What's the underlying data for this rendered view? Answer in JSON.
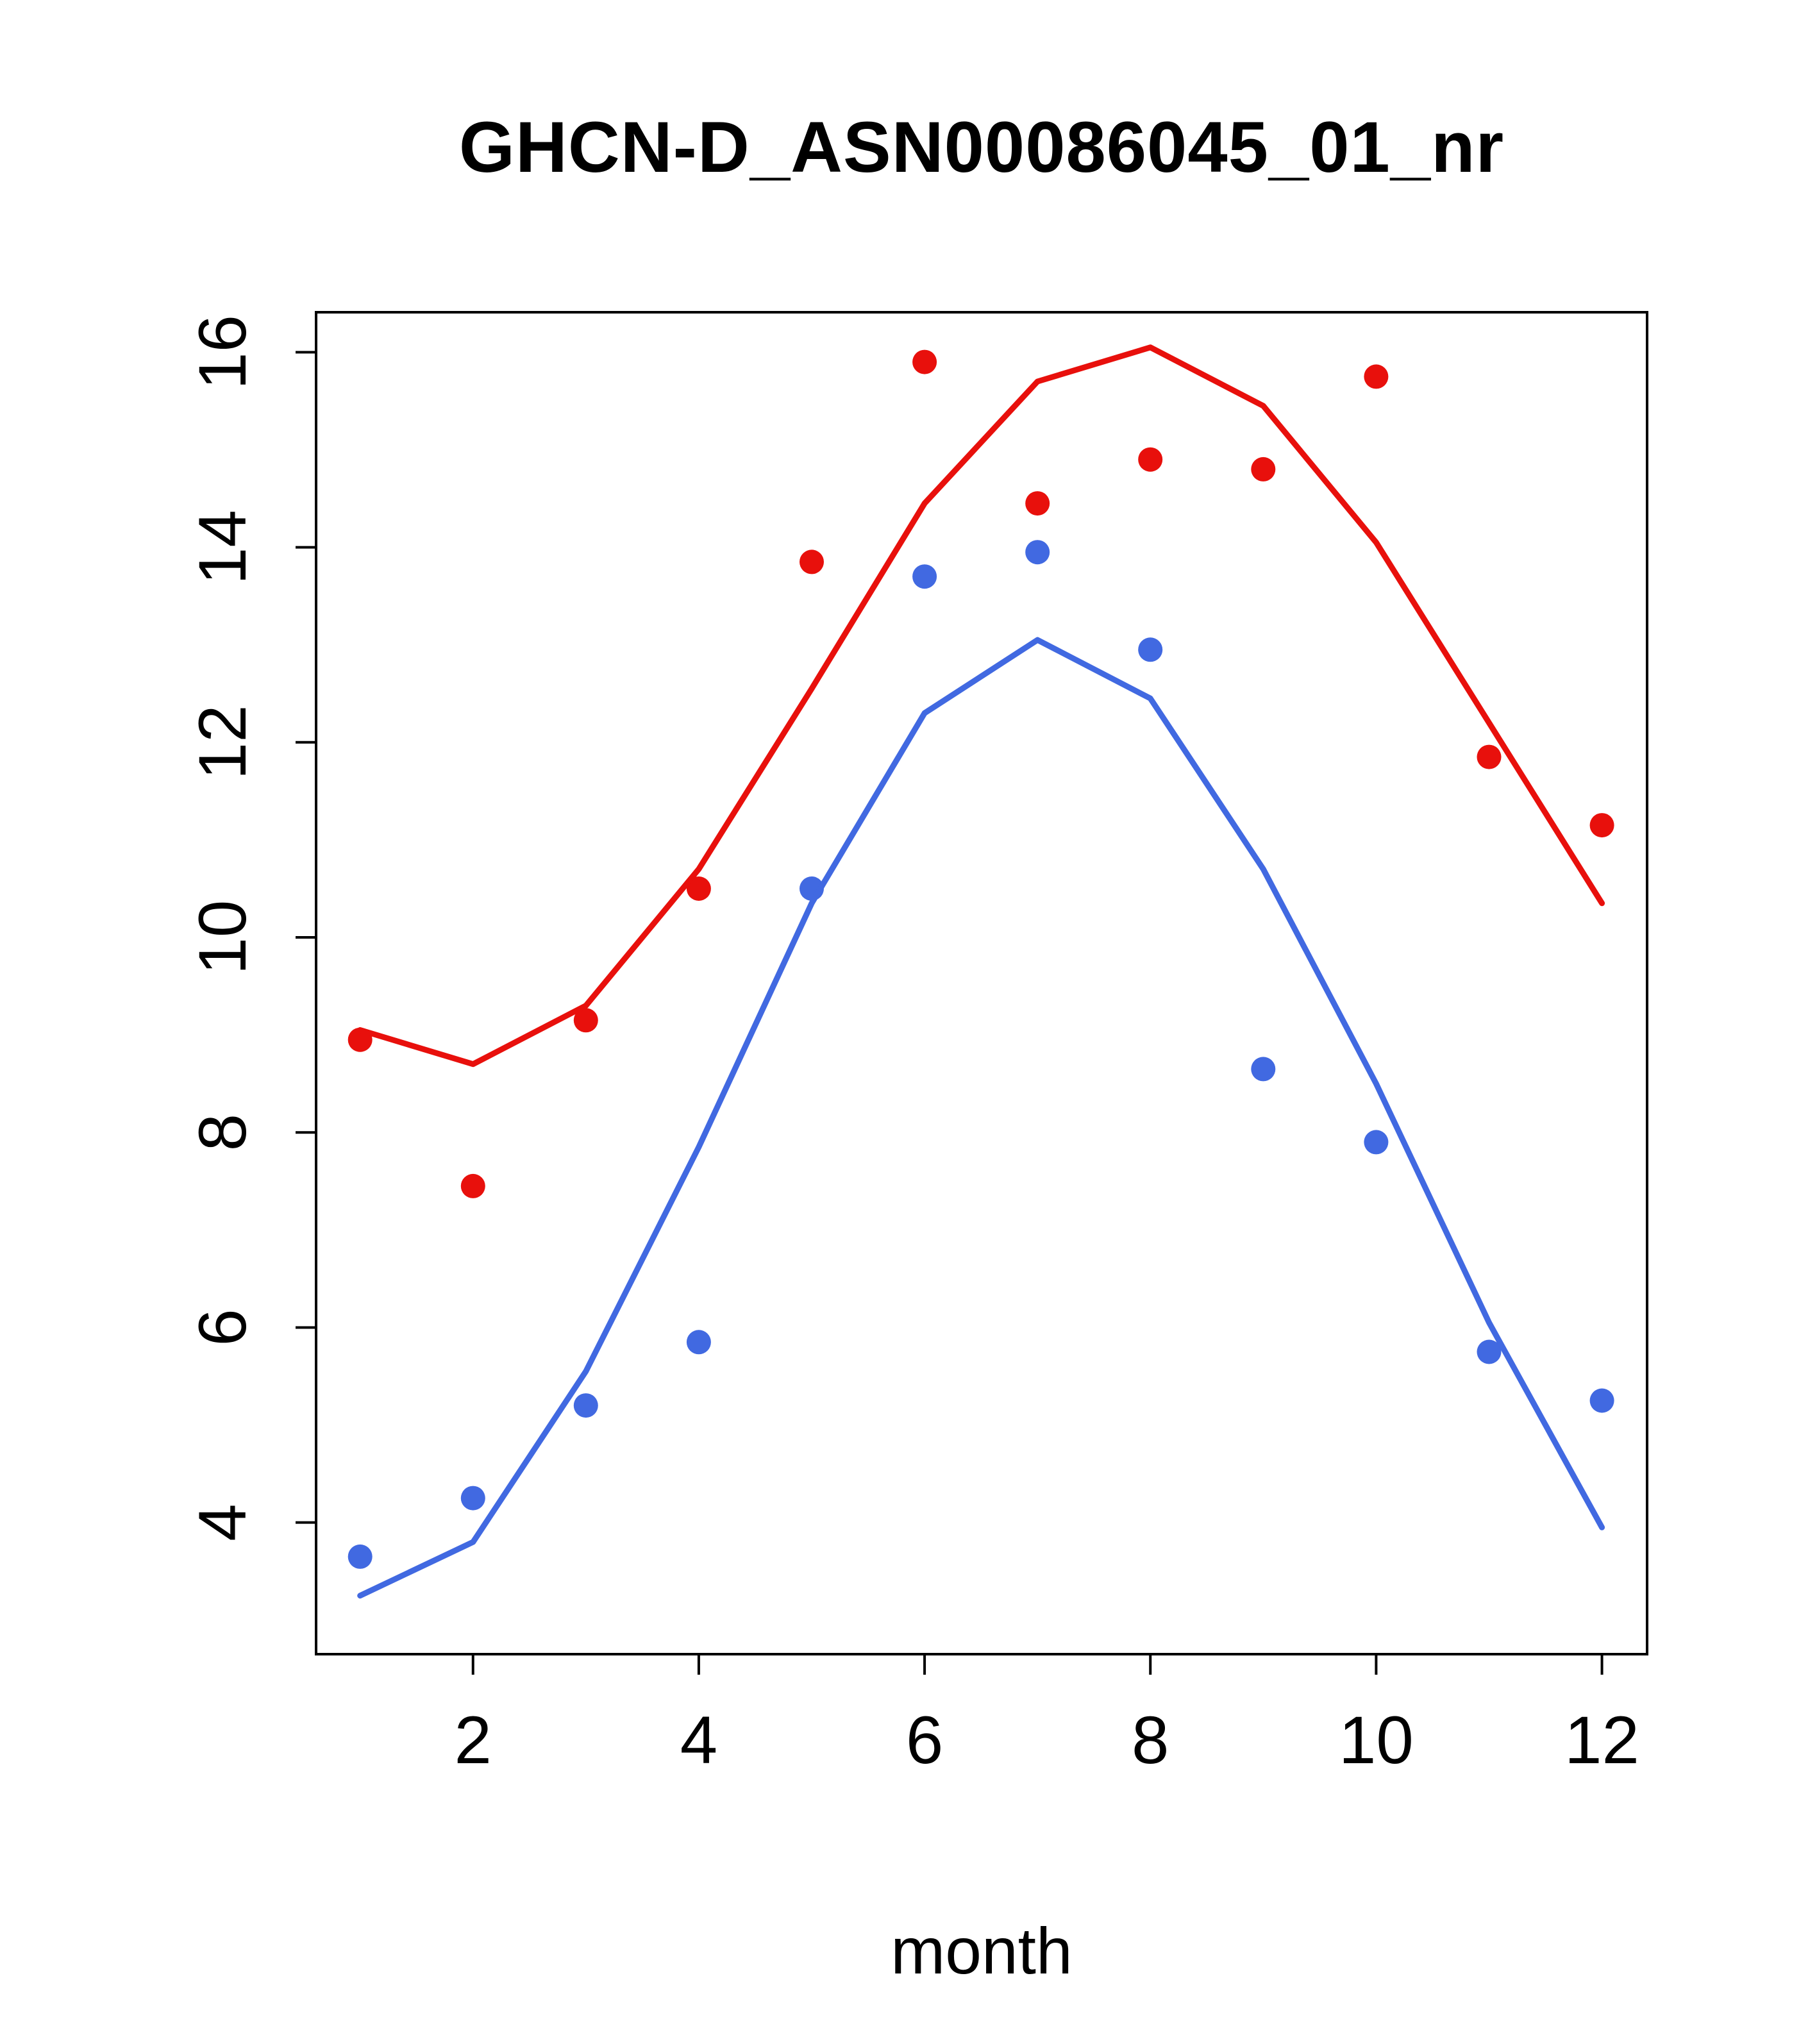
{
  "figure": {
    "title": "GHCN-D_ASN00086045_01_nr",
    "xlabel": "month"
  },
  "chart_data": {
    "type": "line",
    "title": "GHCN-D_ASN00086045_01_nr",
    "xlabel": "month",
    "ylabel": "",
    "grid": false,
    "legend": null,
    "x": [
      1,
      2,
      3,
      4,
      5,
      6,
      7,
      8,
      9,
      10,
      11,
      12
    ],
    "xticks": [
      2,
      4,
      6,
      8,
      10,
      12
    ],
    "yticks": [
      4,
      6,
      8,
      10,
      12,
      14,
      16
    ],
    "xlim": [
      0.61,
      12.4
    ],
    "ylim": [
      2.65,
      16.41
    ],
    "colors": {
      "red_series": "#e8100c",
      "blue_series": "#4169e1"
    },
    "series": [
      {
        "name": "red-points",
        "type": "scatter",
        "color": "#e8100c",
        "values": [
          8.95,
          7.45,
          9.15,
          10.5,
          13.85,
          15.9,
          14.45,
          14.9,
          14.8,
          15.75,
          11.85,
          11.15
        ]
      },
      {
        "name": "red-line",
        "type": "line",
        "color": "#e8100c",
        "values": [
          9.05,
          8.7,
          9.3,
          10.7,
          12.55,
          14.45,
          15.7,
          16.05,
          15.45,
          14.05,
          12.2,
          10.35
        ]
      },
      {
        "name": "blue-points",
        "type": "scatter",
        "color": "#4169e1",
        "values": [
          3.65,
          4.25,
          5.2,
          5.85,
          10.5,
          13.7,
          13.95,
          12.95,
          8.65,
          7.9,
          5.75,
          5.25
        ]
      },
      {
        "name": "blue-line",
        "type": "line",
        "color": "#4169e1",
        "values": [
          3.25,
          3.8,
          5.55,
          7.85,
          10.35,
          12.3,
          13.05,
          12.45,
          10.7,
          8.5,
          6.05,
          3.95
        ]
      }
    ]
  }
}
